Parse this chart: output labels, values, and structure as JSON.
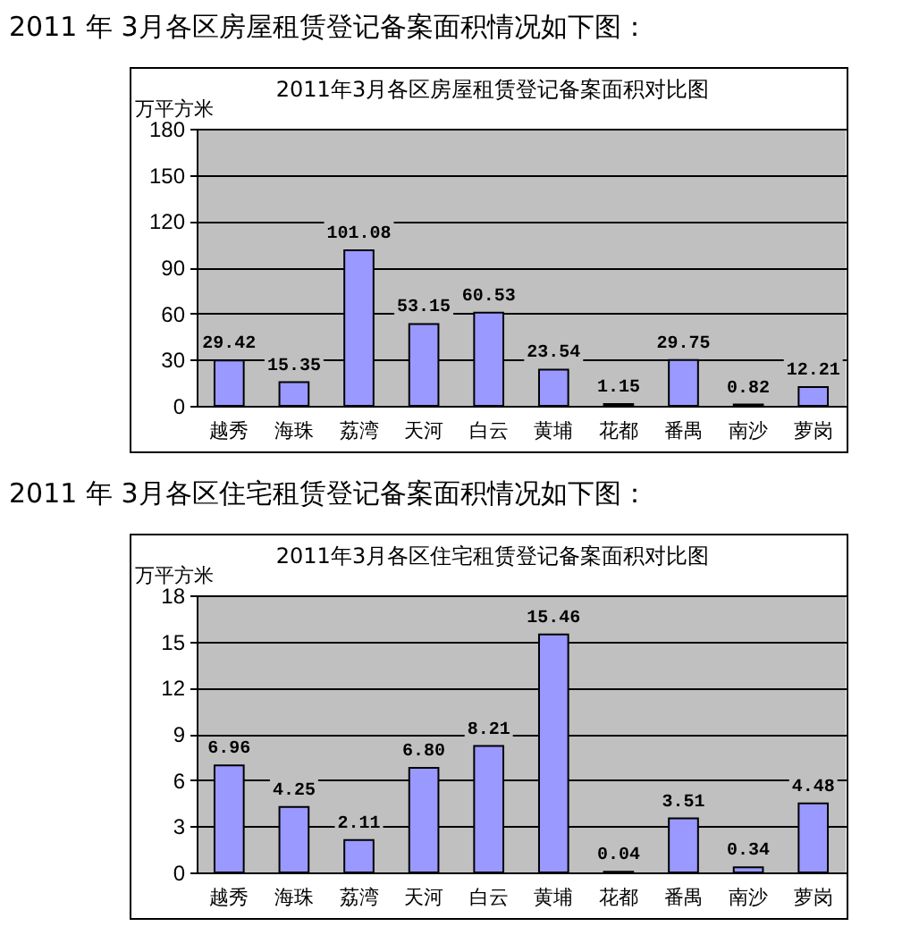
{
  "chart_data": [
    {
      "type": "bar",
      "title": "2011年3月各区房屋租赁登记备案面积对比图",
      "ylabel": "万平方米",
      "annotations": [
        "2011 年 3月各区房屋租赁登记备案面积情况如下图："
      ],
      "categories": [
        "越秀",
        "海珠",
        "荔湾",
        "天河",
        "白云",
        "黄埔",
        "花都",
        "番禺",
        "南沙",
        "萝岗"
      ],
      "values": [
        29.42,
        15.35,
        101.08,
        53.15,
        60.53,
        23.54,
        1.15,
        29.75,
        0.82,
        12.21
      ],
      "value_labels": [
        "29.42",
        "15.35",
        "101.08",
        "53.15",
        "60.53",
        "23.54",
        "1.15",
        "29.75",
        "0.82",
        "12.21"
      ],
      "color": "#9999ff",
      "ylim": [
        0,
        180
      ],
      "yticks": [
        0,
        30,
        60,
        90,
        120,
        150,
        180
      ],
      "grid": "y"
    },
    {
      "type": "bar",
      "title": "2011年3月各区住宅租赁登记备案面积对比图",
      "ylabel": "万平方米",
      "annotations": [
        "2011 年 3月各区住宅租赁登记备案面积情况如下图："
      ],
      "categories": [
        "越秀",
        "海珠",
        "荔湾",
        "天河",
        "白云",
        "黄埔",
        "花都",
        "番禺",
        "南沙",
        "萝岗"
      ],
      "values": [
        6.96,
        4.25,
        2.11,
        6.8,
        8.21,
        15.46,
        0.04,
        3.51,
        0.34,
        4.48
      ],
      "value_labels": [
        "6.96",
        "4.25",
        "2.11",
        "6.80",
        "8.21",
        "15.46",
        "0.04",
        "3.51",
        "0.34",
        "4.48"
      ],
      "color": "#9999ff",
      "ylim": [
        0,
        18
      ],
      "yticks": [
        0,
        3,
        6,
        9,
        12,
        15,
        18
      ],
      "grid": "y"
    }
  ]
}
